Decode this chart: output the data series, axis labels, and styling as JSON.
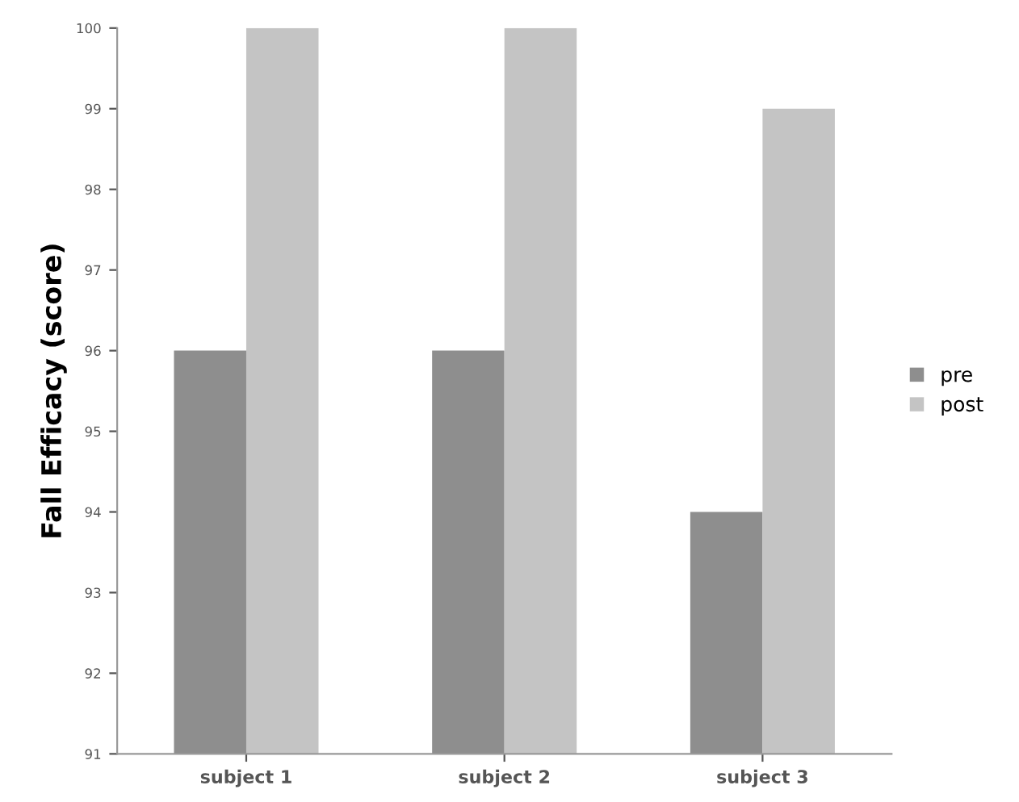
{
  "chart_data": {
    "type": "bar",
    "ylabel": "Fall Efficacy (score)",
    "categories": [
      "subject 1",
      "subject 2",
      "subject 3"
    ],
    "series": [
      {
        "name": "pre",
        "color": "#8e8e8e",
        "values": [
          96,
          96,
          94
        ]
      },
      {
        "name": "post",
        "color": "#c4c4c4",
        "values": [
          100,
          100,
          99
        ]
      }
    ],
    "ylim": [
      91,
      100
    ],
    "yticks": [
      91,
      92,
      93,
      94,
      95,
      96,
      97,
      98,
      99,
      100
    ],
    "grid": false,
    "legend": "right"
  }
}
